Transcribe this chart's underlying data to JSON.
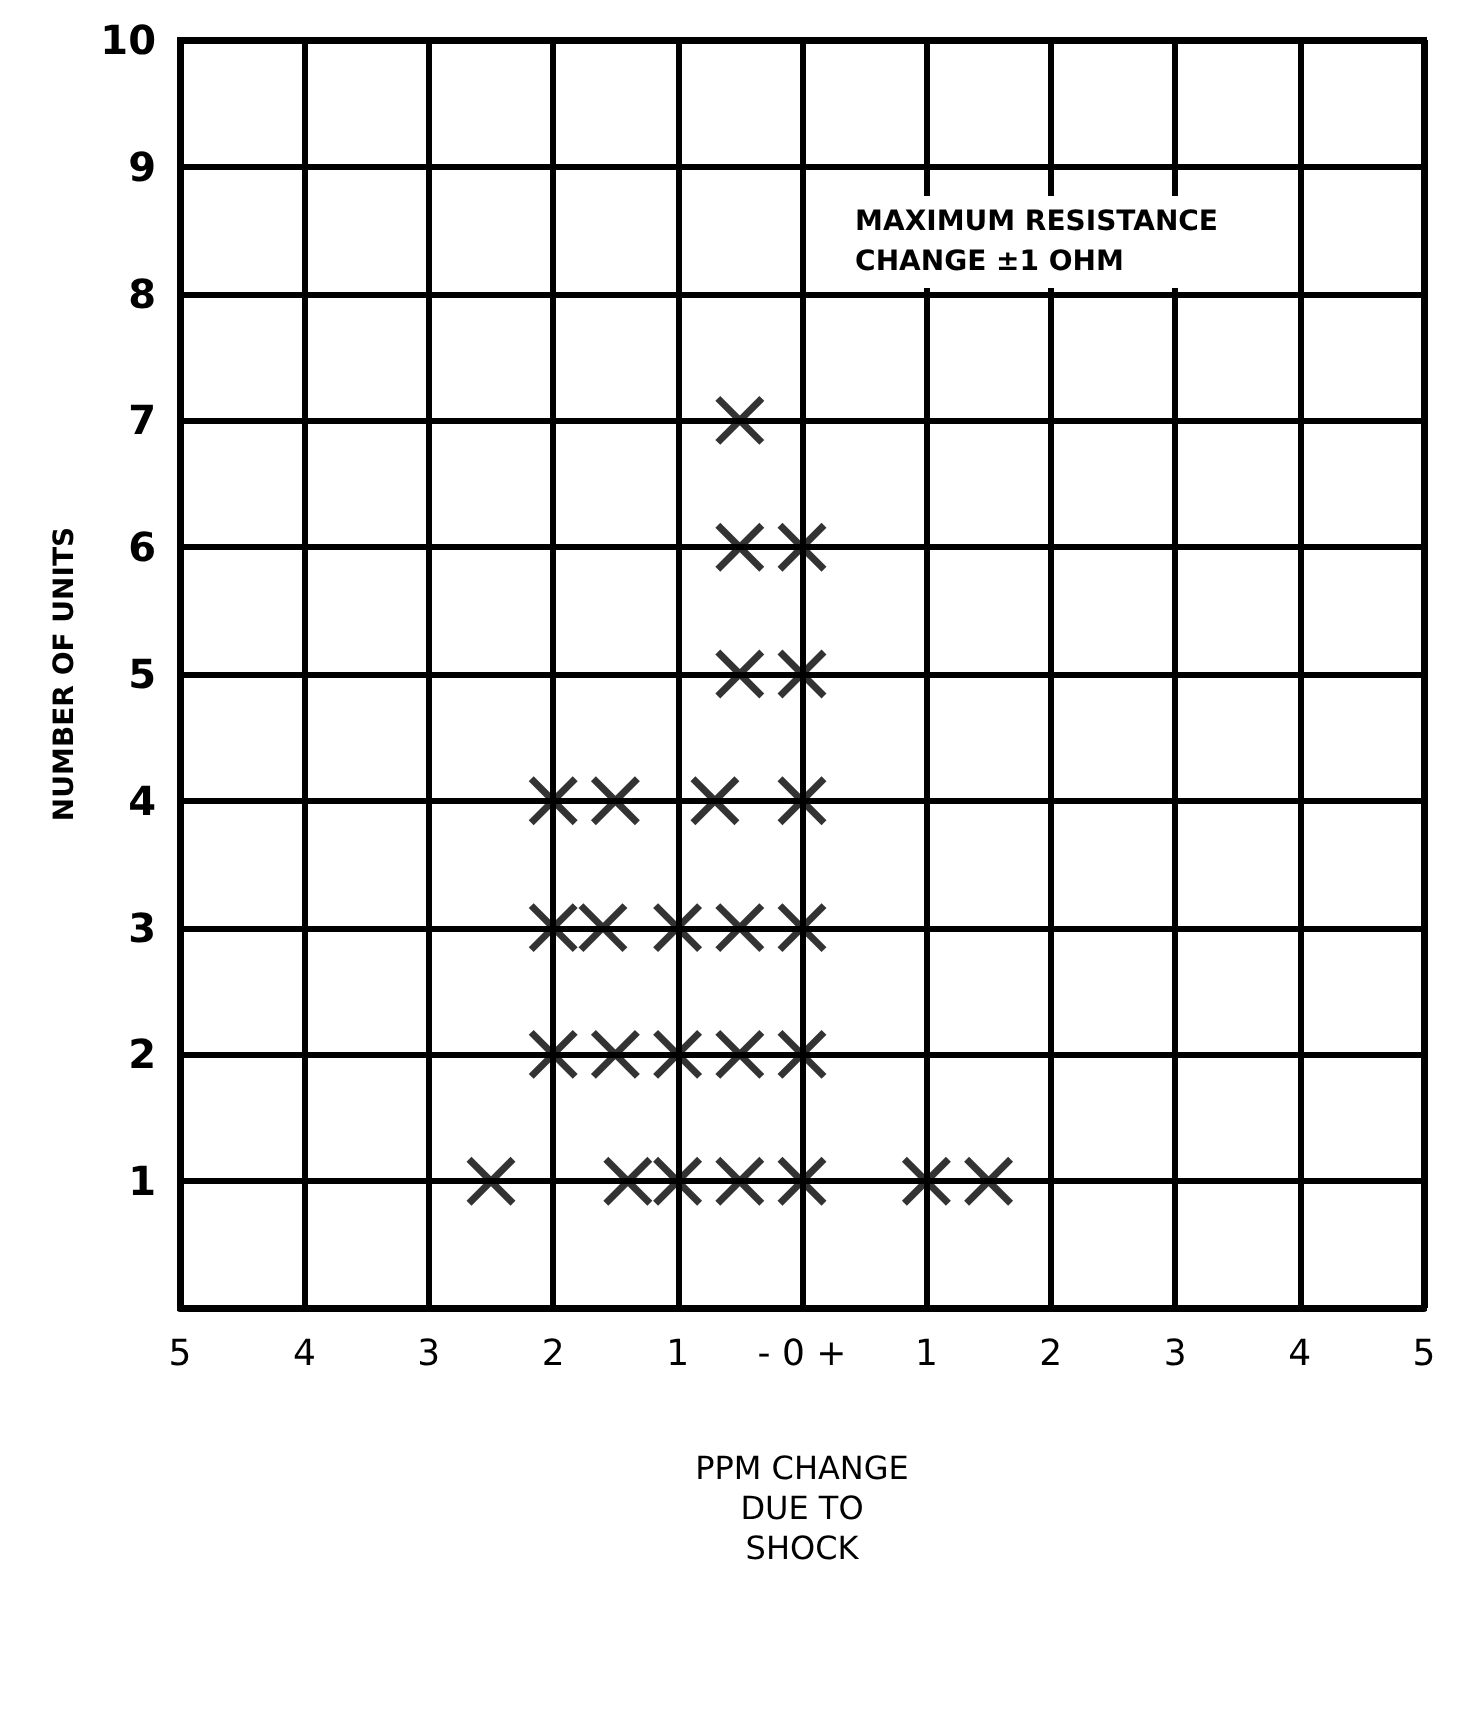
{
  "chart_data": {
    "type": "scatter",
    "xlabel": "PPM CHANGE\nDUE TO\nSHOCK",
    "ylabel": "NUMBER OF UNITS",
    "annotations": [
      "MAXIMUM RESISTANCE\nCHANGE ±1 OHM"
    ],
    "x": [
      -0.5,
      -0.5,
      0,
      -0.5,
      0,
      -2,
      -1.5,
      -0.7,
      0,
      -2,
      -1.6,
      -1,
      -0.5,
      0,
      -2,
      -1.5,
      -1,
      -0.5,
      0,
      -2.5,
      -1.4,
      -1,
      -0.5,
      0,
      1,
      1.5
    ],
    "values": [
      7,
      6,
      6,
      5,
      5,
      4,
      4,
      4,
      4,
      3,
      3,
      3,
      3,
      3,
      2,
      2,
      2,
      2,
      2,
      1,
      1,
      1,
      1,
      1,
      1,
      1
    ],
    "color": "#000000",
    "marker": "cross",
    "grid": true,
    "xlim": [
      -5,
      5
    ],
    "xticks": [
      {
        "value": -5,
        "label": "5"
      },
      {
        "value": -4,
        "label": "4"
      },
      {
        "value": -3,
        "label": "3"
      },
      {
        "value": -2,
        "label": "2"
      },
      {
        "value": -1,
        "label": "1"
      },
      {
        "value": 0,
        "label": "- 0 +"
      },
      {
        "value": 1,
        "label": "1"
      },
      {
        "value": 2,
        "label": "2"
      },
      {
        "value": 3,
        "label": "3"
      },
      {
        "value": 4,
        "label": "4"
      },
      {
        "value": 5,
        "label": "5"
      }
    ],
    "ylim": [
      0,
      10
    ],
    "yticks": [
      1,
      2,
      3,
      4,
      5,
      6,
      7,
      8,
      9,
      10
    ]
  }
}
